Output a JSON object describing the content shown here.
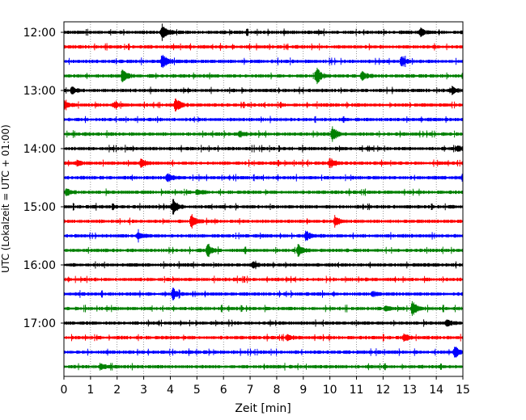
{
  "chart_data": {
    "type": "line",
    "title": "",
    "xlabel": "Zeit  [min]",
    "ylabel": "UTC (Lokalzeit = UTC + 01:00)",
    "xlim": [
      0,
      15
    ],
    "x_ticks": [
      "0",
      "1",
      "2",
      "3",
      "4",
      "5",
      "6",
      "7",
      "8",
      "9",
      "10",
      "11",
      "12",
      "13",
      "14",
      "15"
    ],
    "y_ticks": [
      "12:00",
      "13:00",
      "14:00",
      "15:00",
      "16:00",
      "17:00"
    ],
    "grid": "vertical dotted",
    "legend": "none",
    "trace_colors": [
      "#000000",
      "#ff0000",
      "#0000ff",
      "#008000"
    ],
    "traces": [
      {
        "start": "12:00",
        "events": [
          [
            3.7,
            1.0
          ],
          [
            13.4,
            0.5
          ]
        ]
      },
      {
        "start": "12:15",
        "events": []
      },
      {
        "start": "12:30",
        "events": [
          [
            3.7,
            0.9
          ],
          [
            12.7,
            0.7
          ]
        ]
      },
      {
        "start": "12:45",
        "events": [
          [
            2.2,
            0.8
          ],
          [
            9.5,
            1.0
          ],
          [
            11.2,
            0.6
          ]
        ]
      },
      {
        "start": "13:00",
        "events": [
          [
            0.3,
            0.4
          ],
          [
            14.6,
            0.4
          ]
        ]
      },
      {
        "start": "13:15",
        "events": [
          [
            0.0,
            0.5
          ],
          [
            4.2,
            0.8
          ],
          [
            1.9,
            0.3
          ]
        ]
      },
      {
        "start": "13:30",
        "events": []
      },
      {
        "start": "13:45",
        "events": [
          [
            10.1,
            0.9
          ],
          [
            6.6,
            0.3
          ]
        ]
      },
      {
        "start": "14:00",
        "events": [
          [
            14.8,
            0.3
          ]
        ]
      },
      {
        "start": "14:15",
        "events": [
          [
            2.9,
            0.6
          ],
          [
            10.0,
            0.6
          ],
          [
            0.5,
            0.3
          ]
        ]
      },
      {
        "start": "14:30",
        "events": [
          [
            3.9,
            0.6
          ],
          [
            15.0,
            0.6
          ]
        ]
      },
      {
        "start": "14:45",
        "events": [
          [
            0.1,
            0.4
          ],
          [
            5.0,
            0.3
          ]
        ]
      },
      {
        "start": "15:00",
        "events": [
          [
            4.1,
            0.9
          ]
        ]
      },
      {
        "start": "15:15",
        "events": [
          [
            4.8,
            1.0
          ],
          [
            10.2,
            0.5
          ]
        ]
      },
      {
        "start": "15:30",
        "events": [
          [
            9.1,
            0.6
          ],
          [
            2.8,
            0.4
          ]
        ]
      },
      {
        "start": "15:45",
        "events": [
          [
            5.4,
            0.7
          ],
          [
            8.8,
            0.7
          ]
        ]
      },
      {
        "start": "16:00",
        "events": [
          [
            7.1,
            0.3
          ]
        ]
      },
      {
        "start": "16:15",
        "events": []
      },
      {
        "start": "16:30",
        "events": [
          [
            4.1,
            0.6
          ],
          [
            11.6,
            0.3
          ]
        ]
      },
      {
        "start": "16:45",
        "events": [
          [
            13.1,
            0.9
          ],
          [
            12.1,
            0.3
          ]
        ]
      },
      {
        "start": "17:00",
        "events": [
          [
            14.4,
            0.4
          ]
        ]
      },
      {
        "start": "17:15",
        "events": [
          [
            12.8,
            0.4
          ],
          [
            8.4,
            0.3
          ]
        ]
      },
      {
        "start": "17:30",
        "events": [
          [
            14.7,
            0.7
          ]
        ]
      },
      {
        "start": "17:45",
        "events": [
          [
            1.4,
            0.3
          ]
        ]
      }
    ]
  }
}
